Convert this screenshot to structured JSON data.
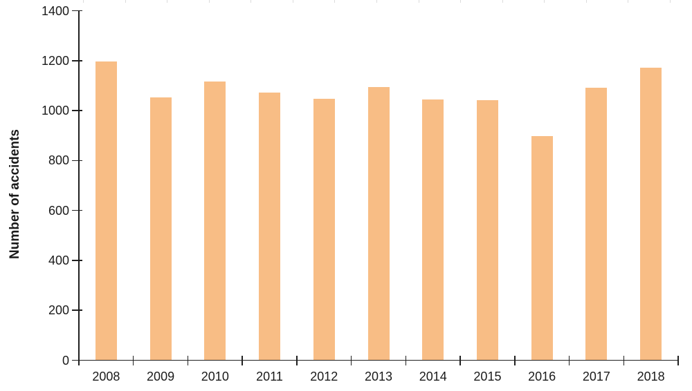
{
  "chart_data": {
    "type": "bar",
    "title": "",
    "xlabel": "",
    "ylabel": "Number of accidents",
    "categories": [
      "2008",
      "2009",
      "2010",
      "2011",
      "2012",
      "2013",
      "2014",
      "2015",
      "2016",
      "2017",
      "2018"
    ],
    "values": [
      1197,
      1053,
      1117,
      1071,
      1047,
      1094,
      1044,
      1043,
      897,
      1091,
      1172
    ],
    "ylim": [
      0,
      1400
    ],
    "ytick_step": 200,
    "y_tick_labels": [
      "0",
      "200",
      "400",
      "600",
      "800",
      "1000",
      "1200",
      "1400"
    ],
    "grid": "off",
    "legend": "none",
    "bar_color": "#F8BD85",
    "axis_color": "#1f1f1f",
    "text_color": "#1a1a1a",
    "background_color": "#ffffff"
  },
  "decor": {
    "top_edge_ruler": {
      "tick_count": 15,
      "tick_color": "#dbdbdb"
    }
  }
}
